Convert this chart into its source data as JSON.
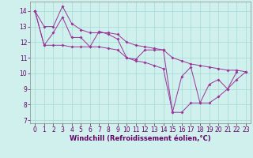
{
  "x": [
    0,
    1,
    2,
    3,
    4,
    5,
    6,
    7,
    8,
    9,
    10,
    11,
    12,
    13,
    14,
    15,
    16,
    17,
    18,
    19,
    20,
    21,
    22,
    23
  ],
  "line_top": [
    14.0,
    13.0,
    13.0,
    14.3,
    13.2,
    12.8,
    12.6,
    12.6,
    12.6,
    12.5,
    12.0,
    11.8,
    11.7,
    11.6,
    11.5,
    11.0,
    10.8,
    10.6,
    10.5,
    10.4,
    10.3,
    10.2,
    10.2,
    10.1
  ],
  "line_bot": [
    14.0,
    11.8,
    11.8,
    11.8,
    11.7,
    11.7,
    11.7,
    11.7,
    11.6,
    11.5,
    11.0,
    10.8,
    10.7,
    10.5,
    10.3,
    7.5,
    7.5,
    8.1,
    8.1,
    8.1,
    8.5,
    9.0,
    9.6,
    10.1
  ],
  "line_mid": [
    14.0,
    11.8,
    12.6,
    13.6,
    12.3,
    12.3,
    11.7,
    12.7,
    12.5,
    12.2,
    11.0,
    10.9,
    11.5,
    11.5,
    11.5,
    7.5,
    9.8,
    10.4,
    8.1,
    9.3,
    9.6,
    9.0,
    10.1,
    null
  ],
  "background_color": "#cff0ec",
  "grid_color": "#aaddda",
  "line_color": "#993399",
  "xlabel": "Windchill (Refroidissement éolien,°C)",
  "ylim": [
    6.8,
    14.6
  ],
  "xlim": [
    -0.5,
    23.5
  ],
  "yticks": [
    7,
    8,
    9,
    10,
    11,
    12,
    13,
    14
  ],
  "xticks": [
    0,
    1,
    2,
    3,
    4,
    5,
    6,
    7,
    8,
    9,
    10,
    11,
    12,
    13,
    14,
    15,
    16,
    17,
    18,
    19,
    20,
    21,
    22,
    23
  ],
  "tick_fontsize": 5.5,
  "xlabel_fontsize": 6.0
}
